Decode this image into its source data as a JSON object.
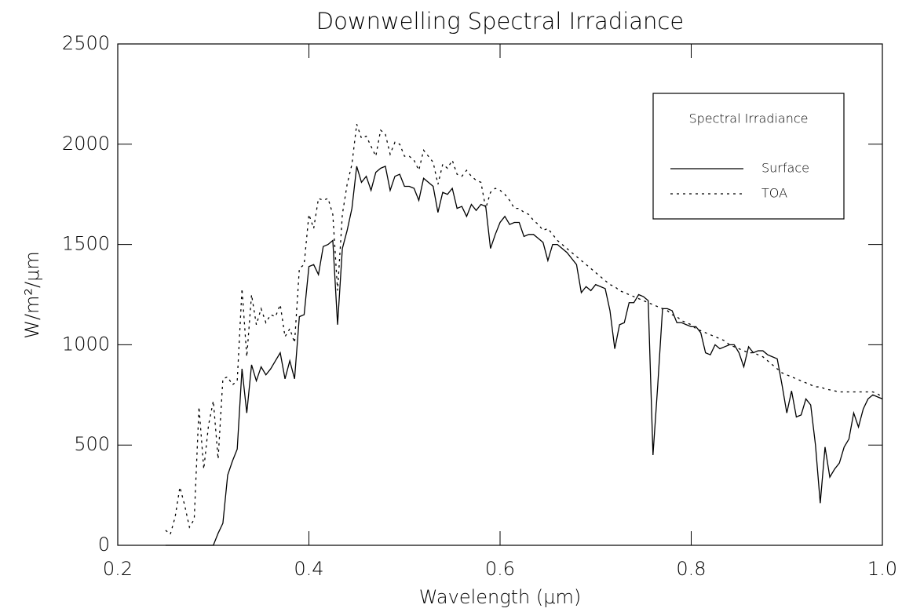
{
  "chart_data": {
    "type": "line",
    "title": "Downwelling Spectral Irradiance",
    "x_label": "Wavelength (μm)",
    "y_label": "W/m²/μm",
    "legend_title": "Spectral Irradiance",
    "legend": "upper right",
    "x": [
      0.25,
      0.255,
      0.26,
      0.265,
      0.27,
      0.275,
      0.28,
      0.285,
      0.29,
      0.295,
      0.3,
      0.305,
      0.31,
      0.315,
      0.32,
      0.325,
      0.33,
      0.335,
      0.34,
      0.345,
      0.35,
      0.355,
      0.36,
      0.365,
      0.37,
      0.375,
      0.38,
      0.385,
      0.39,
      0.395,
      0.4,
      0.405,
      0.41,
      0.415,
      0.42,
      0.425,
      0.43,
      0.435,
      0.44,
      0.445,
      0.45,
      0.455,
      0.46,
      0.465,
      0.47,
      0.475,
      0.48,
      0.485,
      0.49,
      0.495,
      0.5,
      0.505,
      0.51,
      0.515,
      0.52,
      0.525,
      0.53,
      0.535,
      0.54,
      0.545,
      0.55,
      0.555,
      0.56,
      0.565,
      0.57,
      0.575,
      0.58,
      0.585,
      0.59,
      0.595,
      0.6,
      0.605,
      0.61,
      0.615,
      0.62,
      0.625,
      0.63,
      0.635,
      0.64,
      0.645,
      0.65,
      0.655,
      0.66,
      0.665,
      0.67,
      0.675,
      0.68,
      0.685,
      0.69,
      0.695,
      0.7,
      0.705,
      0.71,
      0.715,
      0.72,
      0.725,
      0.73,
      0.735,
      0.74,
      0.745,
      0.75,
      0.755,
      0.76,
      0.765,
      0.77,
      0.775,
      0.78,
      0.785,
      0.79,
      0.795,
      0.8,
      0.805,
      0.81,
      0.815,
      0.82,
      0.825,
      0.83,
      0.835,
      0.84,
      0.845,
      0.85,
      0.855,
      0.86,
      0.865,
      0.87,
      0.875,
      0.88,
      0.885,
      0.89,
      0.895,
      0.9,
      0.905,
      0.91,
      0.915,
      0.92,
      0.925,
      0.93,
      0.935,
      0.94,
      0.945,
      0.95,
      0.955,
      0.96,
      0.965,
      0.97,
      0.975,
      0.98,
      0.985,
      0.99,
      0.995,
      1.0
    ],
    "series": [
      {
        "name": "Surface",
        "color": "#000000",
        "line_style": "solid",
        "values": [
          0,
          0,
          0,
          0,
          0,
          0,
          0,
          0,
          0,
          0,
          0,
          60,
          110,
          350,
          420,
          480,
          880,
          660,
          900,
          820,
          890,
          850,
          880,
          920,
          960,
          830,
          920,
          830,
          1140,
          1150,
          1390,
          1400,
          1350,
          1490,
          1500,
          1520,
          1100,
          1480,
          1570,
          1680,
          1890,
          1810,
          1840,
          1770,
          1860,
          1880,
          1890,
          1770,
          1840,
          1850,
          1790,
          1790,
          1780,
          1720,
          1830,
          1810,
          1790,
          1660,
          1760,
          1750,
          1780,
          1680,
          1690,
          1640,
          1700,
          1670,
          1700,
          1690,
          1480,
          1550,
          1610,
          1640,
          1600,
          1610,
          1610,
          1540,
          1550,
          1550,
          1530,
          1510,
          1420,
          1500,
          1500,
          1480,
          1460,
          1430,
          1400,
          1260,
          1290,
          1270,
          1300,
          1290,
          1280,
          1170,
          980,
          1100,
          1110,
          1210,
          1210,
          1250,
          1240,
          1220,
          450,
          800,
          1180,
          1180,
          1170,
          1110,
          1110,
          1100,
          1090,
          1090,
          1060,
          960,
          950,
          1000,
          980,
          990,
          1000,
          1000,
          960,
          890,
          990,
          960,
          970,
          970,
          950,
          940,
          930,
          800,
          660,
          770,
          640,
          650,
          730,
          700,
          500,
          210,
          490,
          340,
          380,
          410,
          490,
          530,
          660,
          590,
          680,
          730,
          750,
          740,
          730
        ]
      },
      {
        "name": "TOA",
        "color": "#000000",
        "line_style": "dotted",
        "values": [
          75,
          55,
          140,
          290,
          200,
          90,
          130,
          690,
          380,
          600,
          720,
          430,
          830,
          840,
          800,
          820,
          1280,
          940,
          1250,
          1100,
          1180,
          1110,
          1150,
          1140,
          1200,
          1040,
          1080,
          1010,
          1380,
          1400,
          1650,
          1580,
          1730,
          1720,
          1730,
          1650,
          1270,
          1650,
          1800,
          1900,
          2100,
          2030,
          2040,
          1990,
          1940,
          2070,
          2050,
          1950,
          2010,
          2000,
          1940,
          1940,
          1920,
          1870,
          1970,
          1940,
          1910,
          1800,
          1900,
          1880,
          1920,
          1850,
          1840,
          1870,
          1840,
          1820,
          1810,
          1680,
          1760,
          1780,
          1770,
          1750,
          1720,
          1680,
          1680,
          1660,
          1650,
          1620,
          1600,
          1570,
          1580,
          1550,
          1520,
          1500,
          1480,
          1460,
          1440,
          1420,
          1400,
          1380,
          1360,
          1340,
          1320,
          1300,
          1290,
          1270,
          1260,
          1250,
          1240,
          1230,
          1220,
          1210,
          1200,
          1190,
          1180,
          1170,
          1150,
          1140,
          1120,
          1110,
          1100,
          1080,
          1070,
          1060,
          1050,
          1040,
          1030,
          1020,
          1000,
          990,
          980,
          970,
          960,
          960,
          950,
          940,
          920,
          900,
          880,
          860,
          850,
          840,
          830,
          820,
          810,
          800,
          790,
          790,
          780,
          775,
          770,
          765,
          765,
          765,
          765,
          765,
          765,
          765,
          765,
          755,
          740
        ]
      }
    ],
    "xlim": [
      0.2,
      1.0
    ],
    "ylim": [
      0,
      2500
    ],
    "xticks": [
      0.2,
      0.4,
      0.6,
      0.8,
      {
        "value": 1.0,
        "label": "1.0"
      }
    ],
    "yticks": [
      0,
      500,
      1000,
      1500,
      2000,
      2500
    ]
  }
}
